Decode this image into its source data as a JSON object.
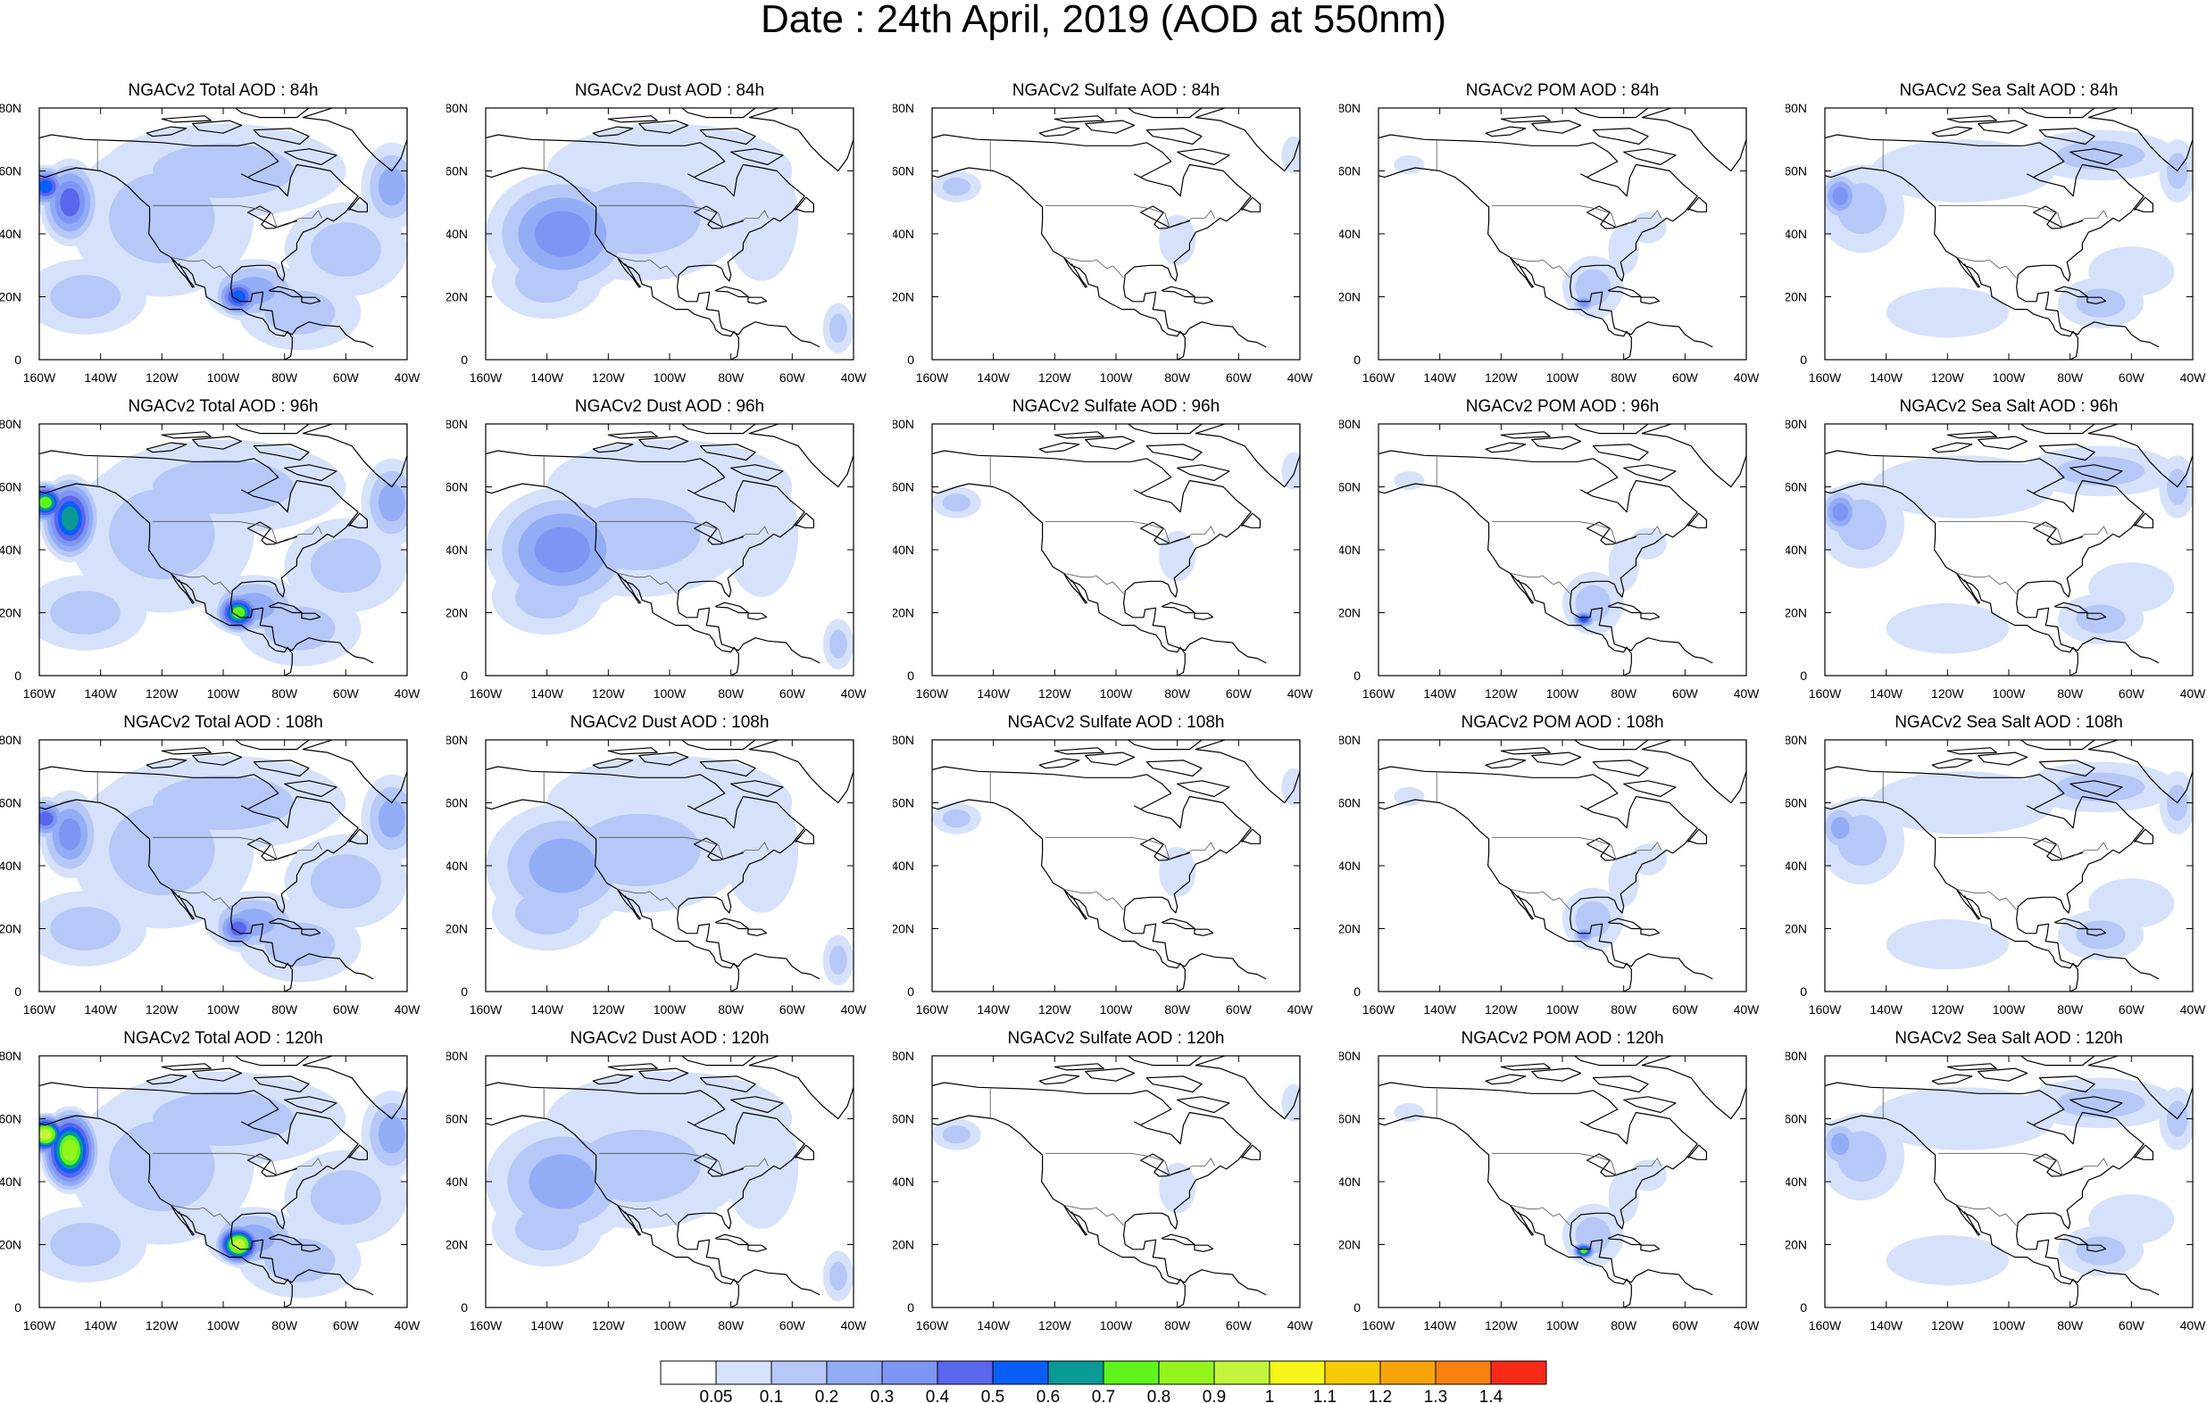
{
  "title": "Date : 24th April, 2019 (AOD at 550nm)",
  "lon_labels": [
    "160W",
    "140W",
    "120W",
    "100W",
    "80W",
    "60W",
    "40W"
  ],
  "lat_labels": [
    "80N",
    "60N",
    "40N",
    "20N",
    "0"
  ],
  "colorbar": {
    "colors": [
      "#ffffff",
      "#d6e2fb",
      "#b5c8f8",
      "#93acf6",
      "#7f95f4",
      "#5a66ec",
      "#0a5ef8",
      "#0a9a95",
      "#5ef41c",
      "#94f51c",
      "#c2f63c",
      "#f6f61b",
      "#f8cb06",
      "#f8a409",
      "#f88110",
      "#f52a19"
    ],
    "labels": [
      "0.05",
      "0.1",
      "0.2",
      "0.3",
      "0.4",
      "0.5",
      "0.6",
      "0.7",
      "0.8",
      "0.9",
      "1",
      "1.1",
      "1.2",
      "1.3",
      "1.4"
    ]
  },
  "chart_data": {
    "type": "heatmap",
    "title": "Date : 24th April, 2019 (AOD at 550nm)",
    "variable": "AOD at 550nm",
    "date": "24th April, 2019",
    "xlim": [
      "160W",
      "40W"
    ],
    "ylim": [
      "0",
      "80N"
    ],
    "forecast_hours": [
      "84h",
      "96h",
      "108h",
      "120h"
    ],
    "species": [
      "Total",
      "Dust",
      "Sulfate",
      "POM",
      "Sea Salt"
    ],
    "panels": [
      {
        "title": "NGACv2 Total AOD : 84h",
        "species": "Total",
        "hour": "84h",
        "max_level": "0.5"
      },
      {
        "title": "NGACv2 Dust AOD : 84h",
        "species": "Dust",
        "hour": "84h",
        "max_level": "0.3"
      },
      {
        "title": "NGACv2 Sulfate AOD : 84h",
        "species": "Sulfate",
        "hour": "84h",
        "max_level": "0.1"
      },
      {
        "title": "NGACv2 POM AOD : 84h",
        "species": "POM",
        "hour": "84h",
        "max_level": "0.3"
      },
      {
        "title": "NGACv2 Sea Salt AOD : 84h",
        "species": "Sea Salt",
        "hour": "84h",
        "max_level": "0.3"
      },
      {
        "title": "NGACv2 Total AOD : 96h",
        "species": "Total",
        "hour": "96h",
        "max_level": "0.7"
      },
      {
        "title": "NGACv2 Dust AOD : 96h",
        "species": "Dust",
        "hour": "96h",
        "max_level": "0.3"
      },
      {
        "title": "NGACv2 Sulfate AOD : 96h",
        "species": "Sulfate",
        "hour": "96h",
        "max_level": "0.1"
      },
      {
        "title": "NGACv2 POM AOD : 96h",
        "species": "POM",
        "hour": "96h",
        "max_level": "0.5"
      },
      {
        "title": "NGACv2 Sea Salt AOD : 96h",
        "species": "Sea Salt",
        "hour": "96h",
        "max_level": "0.3"
      },
      {
        "title": "NGACv2 Total AOD : 108h",
        "species": "Total",
        "hour": "108h",
        "max_level": "0.4"
      },
      {
        "title": "NGACv2 Dust AOD : 108h",
        "species": "Dust",
        "hour": "108h",
        "max_level": "0.2"
      },
      {
        "title": "NGACv2 Sulfate AOD : 108h",
        "species": "Sulfate",
        "hour": "108h",
        "max_level": "0.1"
      },
      {
        "title": "NGACv2 POM AOD : 108h",
        "species": "POM",
        "hour": "108h",
        "max_level": "0.3"
      },
      {
        "title": "NGACv2 Sea Salt AOD : 108h",
        "species": "Sea Salt",
        "hour": "108h",
        "max_level": "0.2"
      },
      {
        "title": "NGACv2 Total AOD : 120h",
        "species": "Total",
        "hour": "120h",
        "max_level": "0.9"
      },
      {
        "title": "NGACv2 Dust AOD : 120h",
        "species": "Dust",
        "hour": "120h",
        "max_level": "0.2"
      },
      {
        "title": "NGACv2 Sulfate AOD : 120h",
        "species": "Sulfate",
        "hour": "120h",
        "max_level": "0.1"
      },
      {
        "title": "NGACv2 POM AOD : 120h",
        "species": "POM",
        "hour": "120h",
        "max_level": "0.7"
      },
      {
        "title": "NGACv2 Sea Salt  AOD : 120h",
        "species": "Sea Salt",
        "hour": "120h",
        "max_level": "0.2"
      }
    ]
  }
}
